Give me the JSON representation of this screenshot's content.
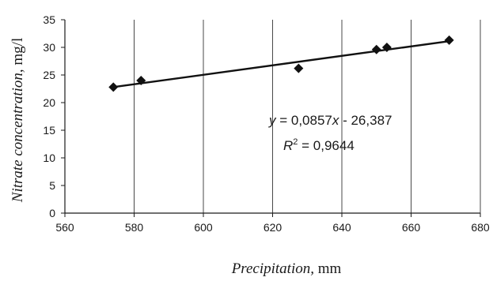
{
  "chart_data": {
    "type": "scatter",
    "xlabel": {
      "italic": "Precipitation,",
      "rest": " mm"
    },
    "ylabel": {
      "italic": "Nitrate concentration,",
      "rest": " mg/l"
    },
    "xlim": [
      560,
      680
    ],
    "ylim": [
      0,
      35
    ],
    "x_ticks": [
      560,
      580,
      600,
      620,
      640,
      660,
      680
    ],
    "y_ticks": [
      0,
      5,
      10,
      15,
      20,
      25,
      30,
      35
    ],
    "x_tick_labels": [
      "560",
      "580",
      "600",
      "620",
      "640",
      "660",
      "680"
    ],
    "y_tick_labels": [
      "0",
      "5",
      "10",
      "15",
      "20",
      "25",
      "30",
      "35"
    ],
    "grid": "vertical",
    "marker": "diamond",
    "points": [
      {
        "x": 574,
        "y": 22.8
      },
      {
        "x": 582,
        "y": 24.0
      },
      {
        "x": 627.5,
        "y": 26.2
      },
      {
        "x": 650,
        "y": 29.6
      },
      {
        "x": 653,
        "y": 30.0
      },
      {
        "x": 671,
        "y": 31.3
      }
    ],
    "trendline": {
      "slope": 0.0857,
      "intercept": -26.387,
      "x_range": [
        574,
        671
      ],
      "equation": {
        "y": "y",
        "eq": " = 0,0857",
        "x": "x",
        "rest": "  - 26,387"
      },
      "r2": {
        "r": "R",
        "sup": "2",
        "rest": " = 0,9644"
      }
    },
    "colors": {
      "axis": "#1a1a1a",
      "grid": "#1a1a1a",
      "marker": "#111111",
      "line": "#111111"
    }
  }
}
